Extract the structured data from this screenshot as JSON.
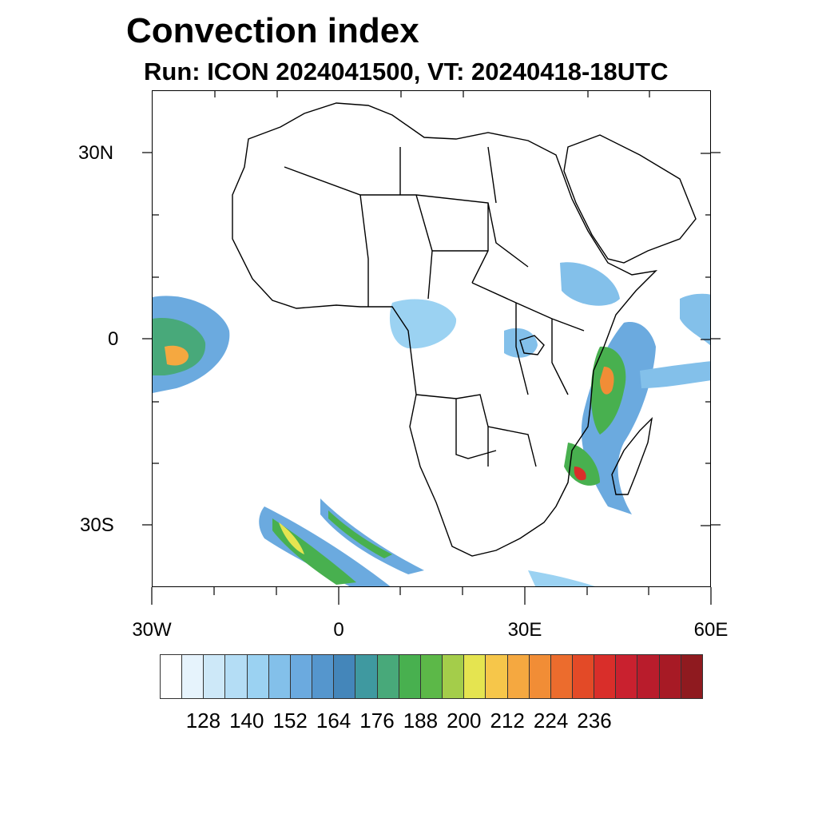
{
  "title": "Convection index",
  "subtitle": "Run: ICON 2024041500,  VT: 20240418-18UTC",
  "map": {
    "lat_labels": [
      "30N",
      "0",
      "30S"
    ],
    "lon_labels": [
      "30W",
      "0",
      "30E",
      "60E"
    ],
    "lon_range": [
      -30,
      60
    ],
    "lat_range": [
      -40,
      40
    ]
  },
  "colorbar": {
    "colors": [
      "#ffffff",
      "#e6f3fc",
      "#cde8f8",
      "#b4ddf5",
      "#9bd2f2",
      "#83c0ea",
      "#6baadf",
      "#5596cd",
      "#4486ba",
      "#3f99a0",
      "#48a97a",
      "#48b04f",
      "#5cb848",
      "#a4cd4a",
      "#e5e450",
      "#f6c64a",
      "#f5a840",
      "#f18d36",
      "#ec6c2d",
      "#e34a27",
      "#d92e2a",
      "#c9212f",
      "#b91c2c",
      "#a71a25",
      "#8f1a1f"
    ],
    "labels": [
      "128",
      "140",
      "152",
      "164",
      "176",
      "188",
      "200",
      "212",
      "224",
      "236"
    ]
  }
}
